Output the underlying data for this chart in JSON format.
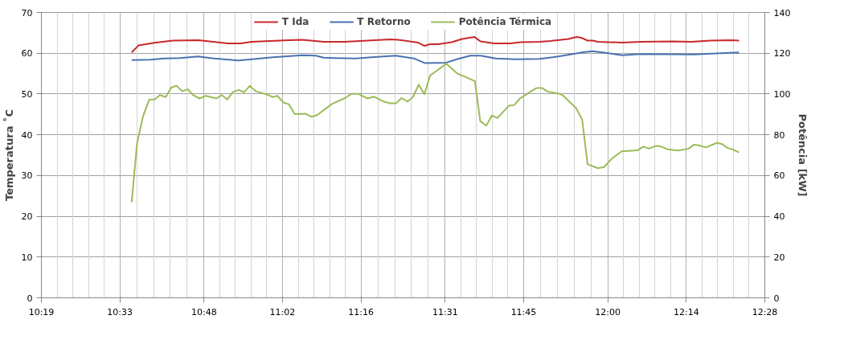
{
  "chart_data": {
    "type": "line",
    "xlim": [
      10.3167,
      12.4667
    ],
    "xticks": [
      {
        "value": 10.3167,
        "label": "10:19"
      },
      {
        "value": 10.55,
        "label": "10:33"
      },
      {
        "value": 10.8,
        "label": "10:48"
      },
      {
        "value": 11.0333,
        "label": "11:02"
      },
      {
        "value": 11.2667,
        "label": "11:16"
      },
      {
        "value": 11.5167,
        "label": "11:31"
      },
      {
        "value": 11.75,
        "label": "11:45"
      },
      {
        "value": 12.0,
        "label": "12:00"
      },
      {
        "value": 12.2333,
        "label": "12:14"
      },
      {
        "value": 12.4667,
        "label": "12:28"
      }
    ],
    "ylim": [
      0,
      70
    ],
    "yticks": [
      0,
      10,
      20,
      30,
      40,
      50,
      60,
      70
    ],
    "y2lim": [
      0,
      140
    ],
    "y2ticks": [
      0,
      20,
      40,
      60,
      80,
      100,
      120,
      140
    ],
    "ylabel": "Temperatura ˚C",
    "y2label": "Potência [kW]",
    "grid": true,
    "legend": "top",
    "marker": "none",
    "line_style": "solid",
    "series": [
      {
        "name": "T Ida",
        "color": "#c9282d",
        "x": [
          10.585,
          10.605,
          10.657,
          10.707,
          10.783,
          10.871,
          10.909,
          10.942,
          11.052,
          11.092,
          11.156,
          11.218,
          11.354,
          11.377,
          11.437,
          11.455,
          11.472,
          11.496,
          11.536,
          11.567,
          11.603,
          11.622,
          11.662,
          11.71,
          11.741,
          11.797,
          11.829,
          11.883,
          11.907,
          11.921,
          11.94,
          11.955,
          11.971,
          12.043,
          12.097,
          12.192,
          12.249,
          12.304,
          12.367,
          12.39
        ],
        "values": [
          60.2,
          61.9,
          62.6,
          63.1,
          63.2,
          62.4,
          62.4,
          62.8,
          63.2,
          63.3,
          62.8,
          62.8,
          63.4,
          63.3,
          62.6,
          61.8,
          62.2,
          62.2,
          62.7,
          63.5,
          64.0,
          62.9,
          62.4,
          62.4,
          62.7,
          62.8,
          63.0,
          63.5,
          64.0,
          63.8,
          63.1,
          63.1,
          62.8,
          62.6,
          62.8,
          62.9,
          62.8,
          63.1,
          63.2,
          63.1
        ]
      },
      {
        "name": "T Retorno",
        "color": "#4a72b0",
        "x": [
          10.585,
          10.641,
          10.68,
          10.728,
          10.783,
          10.831,
          10.902,
          10.942,
          11.004,
          11.092,
          11.132,
          11.156,
          11.187,
          11.251,
          11.298,
          11.37,
          11.425,
          11.456,
          11.52,
          11.551,
          11.591,
          11.622,
          11.667,
          11.726,
          11.797,
          11.836,
          11.868,
          11.931,
          11.955,
          11.995,
          12.043,
          12.097,
          12.256,
          12.335,
          12.39
        ],
        "values": [
          58.3,
          58.4,
          58.7,
          58.8,
          59.2,
          58.7,
          58.2,
          58.5,
          59.0,
          59.5,
          59.4,
          58.9,
          58.8,
          58.7,
          59.0,
          59.4,
          58.7,
          57.6,
          57.7,
          58.5,
          59.4,
          59.4,
          58.7,
          58.5,
          58.6,
          59.0,
          59.4,
          60.3,
          60.5,
          60.1,
          59.5,
          59.8,
          59.7,
          60.0,
          60.2
        ]
      },
      {
        "name": "Potência Térmica",
        "color": "#9bbb59",
        "axis": "y2",
        "x": [
          10.585,
          10.601,
          10.619,
          10.637,
          10.653,
          10.669,
          10.686,
          10.703,
          10.718,
          10.736,
          10.752,
          10.767,
          10.787,
          10.805,
          10.837,
          10.853,
          10.869,
          10.886,
          10.904,
          10.919,
          10.936,
          10.954,
          10.985,
          11.004,
          11.018,
          11.037,
          11.052,
          11.07,
          11.102,
          11.12,
          11.136,
          11.179,
          11.219,
          11.239,
          11.258,
          11.286,
          11.304,
          11.334,
          11.354,
          11.371,
          11.387,
          11.405,
          11.421,
          11.438,
          11.455,
          11.472,
          11.492,
          11.52,
          11.553,
          11.571,
          11.605,
          11.621,
          11.639,
          11.656,
          11.672,
          11.706,
          11.722,
          11.739,
          11.769,
          11.788,
          11.805,
          11.821,
          11.857,
          11.868,
          11.906,
          11.924,
          11.94,
          11.971,
          11.989,
          12.011,
          12.041,
          12.089,
          12.106,
          12.122,
          12.142,
          12.157,
          12.177,
          12.209,
          12.241,
          12.256,
          12.272,
          12.292,
          12.324,
          12.34,
          12.356,
          12.371,
          12.39
        ],
        "values": [
          46.9,
          75.8,
          89.2,
          97.2,
          97.3,
          99.5,
          98.5,
          103.2,
          104.0,
          101.4,
          102.3,
          99.5,
          97.8,
          99.1,
          97.8,
          99.5,
          97.3,
          101.0,
          102.0,
          100.8,
          104.0,
          101.3,
          99.9,
          98.5,
          99.1,
          95.7,
          95.0,
          90.1,
          90.3,
          88.8,
          89.6,
          95.0,
          98.0,
          100.1,
          100.1,
          97.8,
          98.7,
          96.3,
          95.4,
          95.4,
          98.0,
          96.3,
          98.5,
          104.6,
          99.9,
          109.1,
          111.4,
          114.9,
          110.0,
          108.8,
          106.3,
          86.7,
          84.5,
          89.5,
          88.2,
          94.3,
          94.6,
          97.8,
          101.0,
          102.9,
          102.9,
          101.2,
          100.1,
          99.1,
          93.1,
          87.3,
          65.5,
          63.6,
          64.2,
          68.1,
          71.9,
          72.4,
          74.2,
          73.2,
          74.5,
          74.3,
          72.9,
          72.3,
          73.2,
          75.1,
          74.7,
          73.8,
          76.0,
          75.4,
          73.5,
          72.8,
          71.3
        ]
      }
    ]
  }
}
